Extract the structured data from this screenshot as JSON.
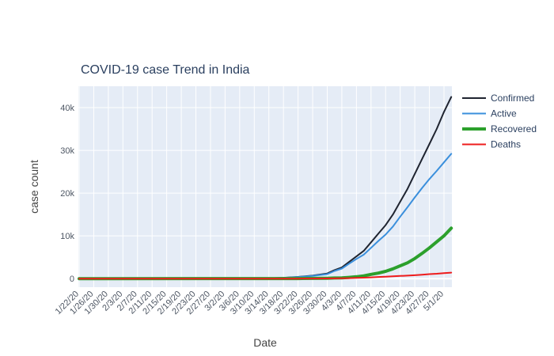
{
  "chart_data": {
    "type": "line",
    "title": "COVID-19 case Trend in  India",
    "xlabel": "Date",
    "ylabel": "case count",
    "ylim": [
      -2000,
      45000
    ],
    "yticks": [
      0,
      10000,
      20000,
      30000,
      40000
    ],
    "ytick_labels": [
      "0",
      "10k",
      "20k",
      "30k",
      "40k"
    ],
    "xlim": [
      "1/22/20",
      "5/3/20"
    ],
    "xtick_labels": [
      "1/22/20",
      "1/26/20",
      "1/30/20",
      "2/3/20",
      "2/7/20",
      "2/11/20",
      "2/15/20",
      "2/19/20",
      "2/23/20",
      "2/27/20",
      "3/2/20",
      "3/6/20",
      "3/10/20",
      "3/14/20",
      "3/18/20",
      "3/22/20",
      "3/26/20",
      "3/30/20",
      "4/3/20",
      "4/7/20",
      "4/11/20",
      "4/15/20",
      "4/19/20",
      "4/23/20",
      "4/27/20",
      "5/1/20"
    ],
    "grid": true,
    "legend_position": "top-right",
    "x": [
      "1/22/20",
      "3/14/20",
      "3/18/20",
      "3/22/20",
      "3/26/20",
      "3/30/20",
      "4/1/20",
      "4/3/20",
      "4/5/20",
      "4/7/20",
      "4/9/20",
      "4/11/20",
      "4/13/20",
      "4/15/20",
      "4/17/20",
      "4/19/20",
      "4/21/20",
      "4/23/20",
      "4/25/20",
      "4/27/20",
      "4/29/20",
      "5/1/20",
      "5/3/20"
    ],
    "series": [
      {
        "name": "Confirmed",
        "color": "#1f2430",
        "width": 2,
        "values": [
          0,
          100,
          200,
          400,
          700,
          1200,
          2000,
          2600,
          3900,
          5200,
          6500,
          8500,
          10500,
          12500,
          15000,
          18000,
          21000,
          24500,
          28000,
          31500,
          35000,
          39000,
          42500
        ]
      },
      {
        "name": "Active",
        "color": "#3a8fdc",
        "width": 2,
        "values": [
          0,
          90,
          180,
          360,
          620,
          1050,
          1800,
          2350,
          3500,
          4600,
          5600,
          7200,
          8800,
          10300,
          12200,
          14500,
          16700,
          19000,
          21200,
          23300,
          25200,
          27200,
          29200
        ]
      },
      {
        "name": "Recovered",
        "color": "#2ca02c",
        "width": 4,
        "values": [
          0,
          10,
          15,
          25,
          45,
          100,
          150,
          180,
          300,
          450,
          650,
          1000,
          1300,
          1700,
          2300,
          3000,
          3700,
          4700,
          5900,
          7200,
          8600,
          10000,
          11800
        ]
      },
      {
        "name": "Deaths",
        "color": "#ee1c1c",
        "width": 2,
        "values": [
          0,
          2,
          4,
          7,
          15,
          35,
          50,
          70,
          110,
          160,
          220,
          300,
          380,
          470,
          560,
          620,
          700,
          800,
          900,
          1050,
          1150,
          1300,
          1400
        ]
      }
    ]
  }
}
